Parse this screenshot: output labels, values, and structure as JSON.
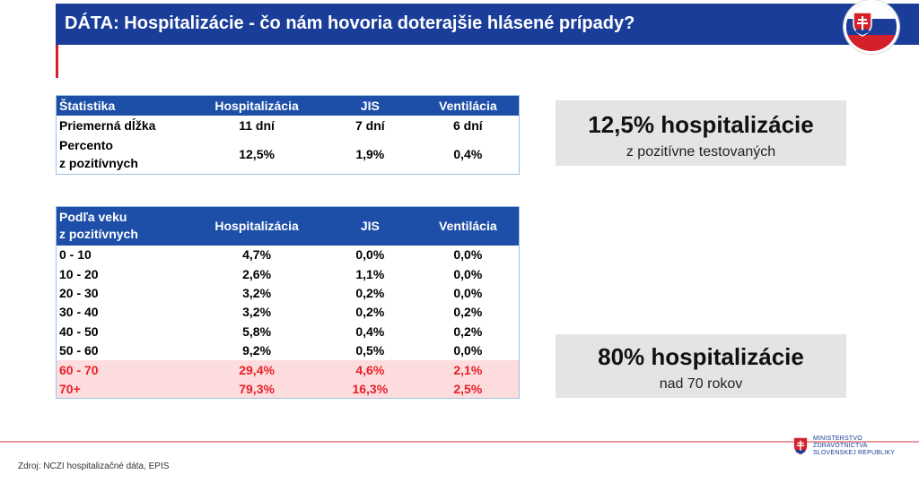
{
  "header": {
    "title": "DÁTA: Hospitalizácie - čo nám hovoria doterajšie hlásené prípady?"
  },
  "table1": {
    "columns": [
      "Štatistika",
      "Hospitalizácia",
      "JIS",
      "Ventilácia"
    ],
    "rows": [
      {
        "label": "Priemerná dĺžka",
        "hosp": "11 dní",
        "jis": "7 dní",
        "vent": "6 dní"
      },
      {
        "label_line1": "Percento",
        "label_line2": "z pozitívnych",
        "hosp": "12,5%",
        "jis": "1,9%",
        "vent": "0,4%"
      }
    ]
  },
  "table2": {
    "header_line1": "Podľa veku",
    "header_line2": "z pozitívnych",
    "columns": [
      "Hospitalizácia",
      "JIS",
      "Ventilácia"
    ],
    "rows": [
      {
        "age": "0 - 10",
        "hosp": "4,7%",
        "jis": "0,0%",
        "vent": "0,0%"
      },
      {
        "age": "10 - 20",
        "hosp": "2,6%",
        "jis": "1,1%",
        "vent": "0,0%"
      },
      {
        "age": "20 - 30",
        "hosp": "3,2%",
        "jis": "0,2%",
        "vent": "0,0%"
      },
      {
        "age": "30 - 40",
        "hosp": "3,2%",
        "jis": "0,2%",
        "vent": "0,2%"
      },
      {
        "age": "40 - 50",
        "hosp": "5,8%",
        "jis": "0,4%",
        "vent": "0,2%"
      },
      {
        "age": "50 - 60",
        "hosp": "9,2%",
        "jis": "0,5%",
        "vent": "0,0%"
      },
      {
        "age": "60 - 70",
        "hosp": "29,4%",
        "jis": "4,6%",
        "vent": "2,1%"
      },
      {
        "age": "70+",
        "hosp": "79,3%",
        "jis": "16,3%",
        "vent": "2,5%"
      }
    ]
  },
  "callouts": [
    {
      "big": "12,5% hospitalizácie",
      "small": "z pozitívne testovaných"
    },
    {
      "big": "80% hospitalizácie",
      "small": "nad 70 rokov"
    }
  ],
  "footer": {
    "source": "Zdroj: NCZI hospitalizačné dáta, EPIS",
    "ministry_line1": "MINISTERSTVO",
    "ministry_line2": "ZDRAVOTNÍCTVA",
    "ministry_line3": "SLOVENSKEJ REPUBLIKY"
  },
  "colors": {
    "header_blue": "#1a3d99",
    "table_header_blue": "#1d4fa8",
    "accent_red": "#d3202a",
    "highlight_row_bg": "#fcdcdc",
    "highlight_text_red": "#e8202a",
    "callout_bg": "#e4e4e4"
  }
}
